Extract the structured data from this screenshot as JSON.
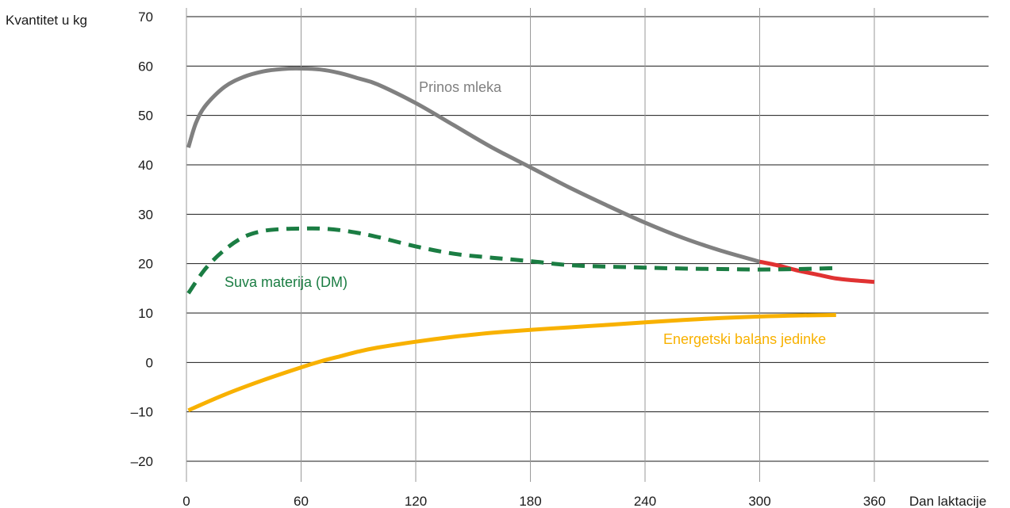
{
  "chart_data": {
    "type": "line",
    "title": "",
    "xlabel": "Dan laktacije",
    "ylabel": "Kvantitet u  kg",
    "xlim": [
      0,
      360
    ],
    "ylim": [
      -20,
      70
    ],
    "x_ticks": [
      0,
      60,
      120,
      180,
      240,
      300,
      360
    ],
    "y_ticks": [
      -20,
      -10,
      0,
      10,
      20,
      30,
      40,
      50,
      60,
      70
    ],
    "y_tick_labels": [
      "–20",
      "–10",
      "0",
      "10",
      "20",
      "30",
      "40",
      "50",
      "60",
      "70"
    ],
    "grid": {
      "horizontal": true,
      "vertical": true
    },
    "series": [
      {
        "name": "Prinos mleka",
        "style": "solid",
        "color": "#808080",
        "x": [
          1,
          5,
          10,
          20,
          30,
          40,
          50,
          60,
          70,
          80,
          90,
          100,
          120,
          140,
          160,
          180,
          200,
          220,
          240,
          260,
          280,
          300
        ],
        "y": [
          43.5,
          48.5,
          52,
          55.8,
          57.8,
          58.9,
          59.4,
          59.5,
          59.3,
          58.6,
          57.5,
          56.3,
          52.5,
          48,
          43.5,
          39.5,
          35.5,
          31.8,
          28.3,
          25.2,
          22.6,
          20.4
        ]
      },
      {
        "name": "",
        "style": "solid",
        "color": "#e03232",
        "x": [
          300,
          310,
          320,
          330,
          340,
          350,
          360
        ],
        "y": [
          20.4,
          19.6,
          18.6,
          17.8,
          17.0,
          16.6,
          16.3
        ]
      },
      {
        "name": "Suva materija (DM)",
        "style": "dashed",
        "color": "#1b7d43",
        "x": [
          1,
          10,
          20,
          30,
          40,
          50,
          60,
          70,
          80,
          90,
          100,
          120,
          140,
          160,
          180,
          200,
          220,
          240,
          260,
          280,
          300,
          320,
          340
        ],
        "y": [
          14,
          19,
          22.8,
          25.4,
          26.6,
          27,
          27.1,
          27.1,
          26.8,
          26.2,
          25.4,
          23.5,
          22,
          21.2,
          20.5,
          19.7,
          19.4,
          19.2,
          19,
          18.9,
          18.8,
          18.9,
          19.1
        ]
      },
      {
        "name": "Energetski balans jedinke",
        "style": "solid",
        "color": "#f8b100",
        "x": [
          1,
          20,
          40,
          60,
          70,
          80,
          90,
          100,
          120,
          140,
          160,
          180,
          200,
          220,
          240,
          260,
          280,
          300,
          320,
          340
        ],
        "y": [
          -9.7,
          -6.5,
          -3.6,
          -1,
          0.2,
          1.2,
          2.2,
          3,
          4.2,
          5.2,
          6,
          6.6,
          7.1,
          7.6,
          8.1,
          8.6,
          9,
          9.3,
          9.5,
          9.6
        ]
      }
    ]
  }
}
